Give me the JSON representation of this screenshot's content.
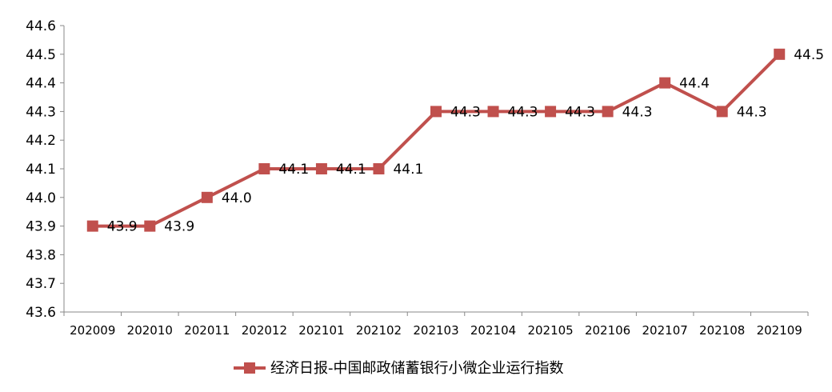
{
  "chart_data": {
    "type": "line",
    "title": "",
    "xlabel": "",
    "ylabel": "",
    "categories": [
      "202009",
      "202010",
      "202011",
      "202012",
      "202101",
      "202102",
      "202103",
      "202104",
      "202105",
      "202106",
      "202107",
      "202108",
      "202109"
    ],
    "series": [
      {
        "name": "经济日报-中国邮政储蓄银行小微企业运行指数",
        "values": [
          43.9,
          43.9,
          44.0,
          44.1,
          44.1,
          44.1,
          44.3,
          44.3,
          44.3,
          44.3,
          44.4,
          44.3,
          44.5
        ],
        "labels": [
          "43.9",
          "43.9",
          "44.0",
          "44.1",
          "44.1",
          "44.1",
          "44.3",
          "44.3",
          "44.3",
          "44.3",
          "44.4",
          "44.3",
          "44.5"
        ],
        "color": "#C0504D"
      }
    ],
    "ylim": [
      43.6,
      44.6
    ],
    "yticks": [
      "43.6",
      "43.7",
      "43.8",
      "43.9",
      "44.0",
      "44.1",
      "44.2",
      "44.3",
      "44.4",
      "44.5",
      "44.6"
    ],
    "grid": false,
    "legend_position": "bottom",
    "marker": "square"
  }
}
